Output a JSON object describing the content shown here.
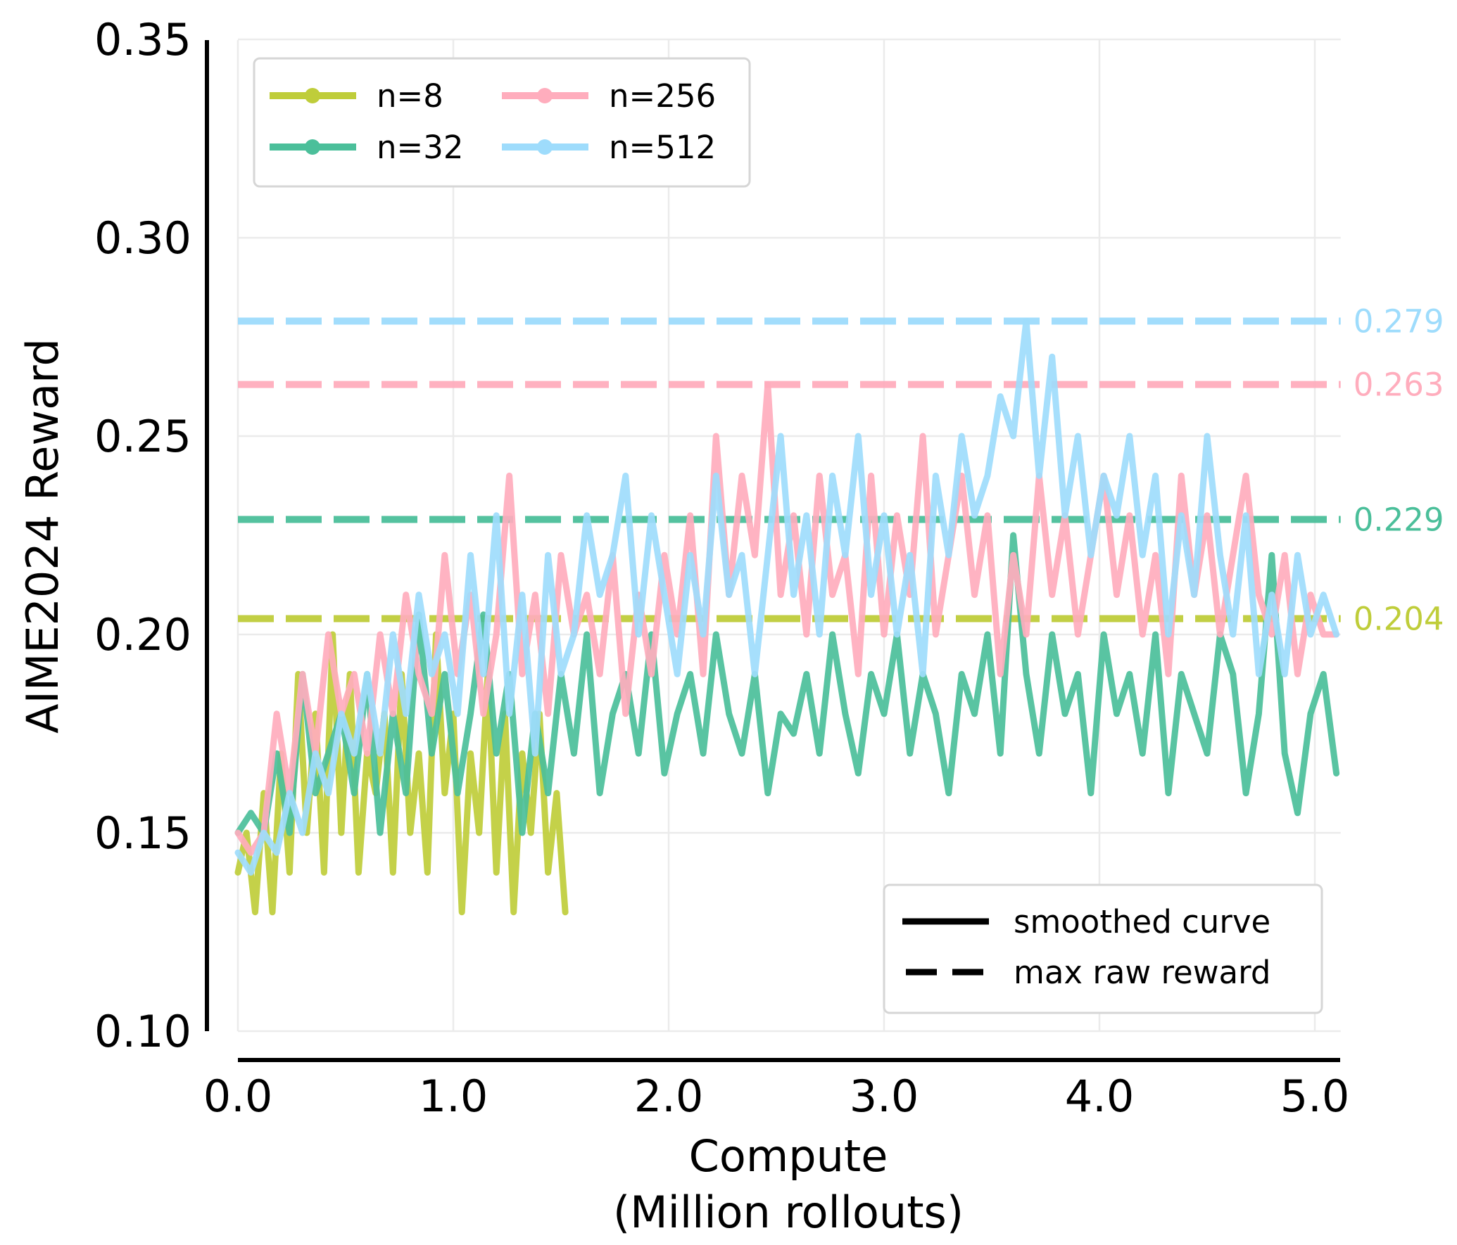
{
  "chart_data": {
    "type": "line",
    "xlabel": [
      "Compute",
      "(Million rollouts)"
    ],
    "ylabel": "AIME2024 Reward",
    "xlim": [
      0,
      5.12
    ],
    "ylim": [
      0.1,
      0.35
    ],
    "xticks": [
      0,
      1,
      2,
      3,
      4,
      5
    ],
    "xtick_labels": [
      "0.0",
      "1.0",
      "2.0",
      "3.0",
      "4.0",
      "5.0"
    ],
    "yticks": [
      0.1,
      0.15,
      0.2,
      0.25,
      0.3,
      0.35
    ],
    "ytick_labels": [
      "0.10",
      "0.15",
      "0.20",
      "0.25",
      "0.30",
      "0.35"
    ],
    "grid": true,
    "legend_placement": "top-left",
    "style_legend_placement": "bottom-right",
    "style_legend": [
      {
        "label": "smoothed curve",
        "style": "solid"
      },
      {
        "label": "max raw reward",
        "style": "dashed"
      }
    ],
    "series": [
      {
        "name": "n=8",
        "color": "#bfcd3a",
        "max_raw_reward": 0.204,
        "max_label": "0.204",
        "x_start": 0,
        "x_step": 0.04,
        "values": [
          0.14,
          0.15,
          0.13,
          0.16,
          0.13,
          0.17,
          0.14,
          0.19,
          0.15,
          0.18,
          0.14,
          0.2,
          0.15,
          0.19,
          0.14,
          0.17,
          0.16,
          0.18,
          0.14,
          0.19,
          0.15,
          0.17,
          0.14,
          0.2,
          0.16,
          0.18,
          0.13,
          0.17,
          0.15,
          0.19,
          0.14,
          0.18,
          0.13,
          0.17,
          0.15,
          0.18,
          0.14,
          0.16,
          0.13
        ]
      },
      {
        "name": "n=32",
        "color": "#4bbf9a",
        "max_raw_reward": 0.229,
        "max_label": "0.229",
        "x_start": 0,
        "x_step": 0.06,
        "values": [
          0.15,
          0.155,
          0.15,
          0.17,
          0.15,
          0.19,
          0.16,
          0.17,
          0.18,
          0.16,
          0.19,
          0.15,
          0.18,
          0.16,
          0.205,
          0.17,
          0.19,
          0.16,
          0.18,
          0.205,
          0.17,
          0.19,
          0.15,
          0.18,
          0.16,
          0.19,
          0.17,
          0.2,
          0.16,
          0.18,
          0.19,
          0.17,
          0.2,
          0.165,
          0.18,
          0.19,
          0.17,
          0.2,
          0.18,
          0.17,
          0.19,
          0.16,
          0.18,
          0.175,
          0.19,
          0.17,
          0.2,
          0.18,
          0.165,
          0.19,
          0.18,
          0.2,
          0.17,
          0.19,
          0.18,
          0.16,
          0.19,
          0.18,
          0.2,
          0.17,
          0.225,
          0.19,
          0.17,
          0.2,
          0.18,
          0.19,
          0.16,
          0.2,
          0.18,
          0.19,
          0.17,
          0.2,
          0.16,
          0.19,
          0.18,
          0.17,
          0.2,
          0.19,
          0.16,
          0.18,
          0.22,
          0.17,
          0.155,
          0.18,
          0.19,
          0.165
        ]
      },
      {
        "name": "n=256",
        "color": "#ffadbd",
        "max_raw_reward": 0.263,
        "max_label": "0.263",
        "x_start": 0,
        "x_step": 0.06,
        "values": [
          0.15,
          0.145,
          0.15,
          0.18,
          0.16,
          0.19,
          0.17,
          0.2,
          0.18,
          0.19,
          0.17,
          0.2,
          0.18,
          0.21,
          0.19,
          0.18,
          0.22,
          0.19,
          0.21,
          0.18,
          0.2,
          0.24,
          0.19,
          0.21,
          0.18,
          0.22,
          0.2,
          0.21,
          0.19,
          0.22,
          0.18,
          0.21,
          0.19,
          0.22,
          0.2,
          0.23,
          0.19,
          0.25,
          0.21,
          0.24,
          0.22,
          0.263,
          0.21,
          0.23,
          0.2,
          0.24,
          0.21,
          0.22,
          0.19,
          0.24,
          0.2,
          0.23,
          0.21,
          0.25,
          0.2,
          0.22,
          0.24,
          0.21,
          0.23,
          0.19,
          0.22,
          0.2,
          0.24,
          0.21,
          0.23,
          0.2,
          0.22,
          0.24,
          0.21,
          0.23,
          0.2,
          0.22,
          0.19,
          0.24,
          0.21,
          0.23,
          0.2,
          0.22,
          0.24,
          0.21,
          0.2,
          0.22,
          0.19,
          0.21,
          0.2,
          0.2
        ]
      },
      {
        "name": "n=512",
        "color": "#9edcfc",
        "max_raw_reward": 0.279,
        "max_label": "0.279",
        "x_start": 0,
        "x_step": 0.06,
        "values": [
          0.145,
          0.14,
          0.15,
          0.145,
          0.16,
          0.15,
          0.17,
          0.16,
          0.18,
          0.17,
          0.19,
          0.17,
          0.2,
          0.18,
          0.21,
          0.19,
          0.2,
          0.18,
          0.22,
          0.19,
          0.23,
          0.18,
          0.21,
          0.17,
          0.22,
          0.19,
          0.2,
          0.23,
          0.21,
          0.22,
          0.24,
          0.2,
          0.23,
          0.21,
          0.19,
          0.22,
          0.2,
          0.24,
          0.21,
          0.22,
          0.19,
          0.22,
          0.25,
          0.21,
          0.23,
          0.2,
          0.24,
          0.22,
          0.25,
          0.21,
          0.23,
          0.2,
          0.22,
          0.19,
          0.24,
          0.22,
          0.25,
          0.23,
          0.24,
          0.26,
          0.25,
          0.279,
          0.24,
          0.27,
          0.23,
          0.25,
          0.22,
          0.24,
          0.23,
          0.25,
          0.22,
          0.24,
          0.2,
          0.23,
          0.21,
          0.25,
          0.22,
          0.2,
          0.23,
          0.19,
          0.21,
          0.19,
          0.22,
          0.2,
          0.21,
          0.2
        ]
      }
    ]
  }
}
